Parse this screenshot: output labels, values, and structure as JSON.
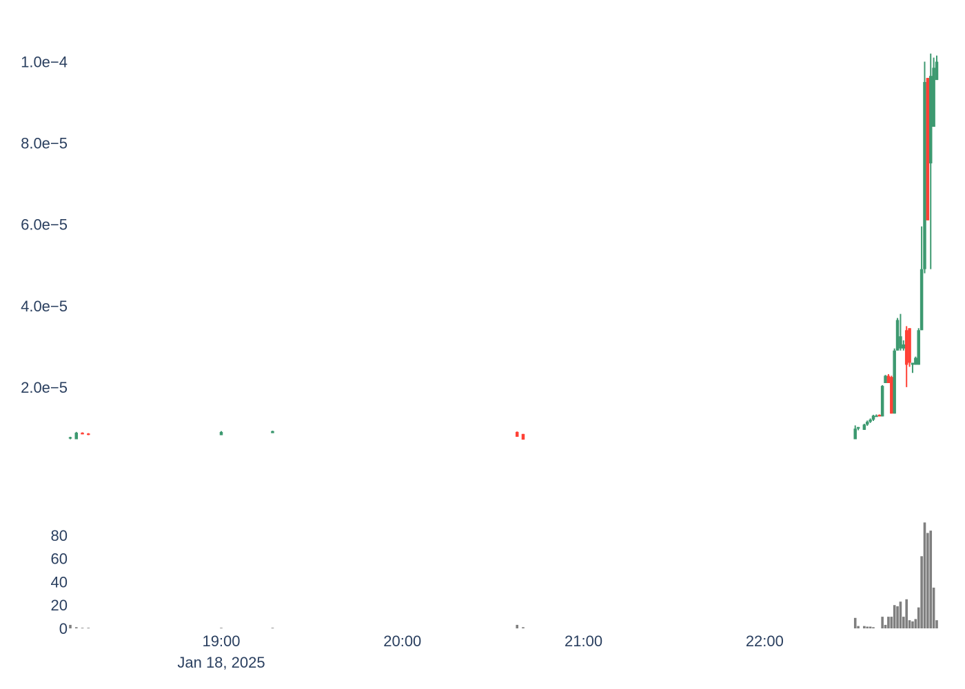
{
  "chart_data": {
    "type": "candlestick",
    "x_range": [
      "2025-01-18 18:10",
      "2025-01-18 22:57"
    ],
    "price": {
      "ylim": [
        0,
        0.000105
      ],
      "ticks": [
        2e-05,
        4e-05,
        6e-05,
        8e-05,
        0.0001
      ],
      "tick_labels": [
        "2.0e−5",
        "4.0e−5",
        "6.0e−5",
        "8.0e−5",
        "1.0e−4"
      ],
      "up_color": "#3d9970",
      "down_color": "#ff4136",
      "candles": [
        {
          "t": "18:10",
          "o": 7.5e-06,
          "h": 7.8e-06,
          "l": 7.2e-06,
          "c": 7.7e-06
        },
        {
          "t": "18:12",
          "o": 7.2e-06,
          "h": 9e-06,
          "l": 7.2e-06,
          "c": 8.8e-06
        },
        {
          "t": "18:14",
          "o": 8.8e-06,
          "h": 8.9e-06,
          "l": 8.4e-06,
          "c": 8.4e-06
        },
        {
          "t": "18:16",
          "o": 8.6e-06,
          "h": 8.7e-06,
          "l": 8.2e-06,
          "c": 8.4e-06
        },
        {
          "t": "19:00",
          "o": 8.2e-06,
          "h": 9.2e-06,
          "l": 8.2e-06,
          "c": 9e-06
        },
        {
          "t": "19:17",
          "o": 8.7e-06,
          "h": 9.3e-06,
          "l": 8.7e-06,
          "c": 9.2e-06
        },
        {
          "t": "20:38",
          "o": 9e-06,
          "h": 9.1e-06,
          "l": 7.8e-06,
          "c": 7.8e-06
        },
        {
          "t": "20:40",
          "o": 8.5e-06,
          "h": 8.5e-06,
          "l": 7.1e-06,
          "c": 7.1e-06
        },
        {
          "t": "22:30",
          "o": 7.2e-06,
          "h": 1.06e-05,
          "l": 7.2e-06,
          "c": 9.8e-06
        },
        {
          "t": "22:31",
          "o": 9.8e-06,
          "h": 1.02e-05,
          "l": 9.4e-06,
          "c": 1.02e-05
        },
        {
          "t": "22:33",
          "o": 9.5e-06,
          "h": 1.1e-05,
          "l": 9.5e-06,
          "c": 1.08e-05
        },
        {
          "t": "22:34",
          "o": 1.08e-05,
          "h": 1.18e-05,
          "l": 1.05e-05,
          "c": 1.15e-05
        },
        {
          "t": "22:35",
          "o": 1.15e-05,
          "h": 1.23e-05,
          "l": 1.12e-05,
          "c": 1.2e-05
        },
        {
          "t": "22:36",
          "o": 1.2e-05,
          "h": 1.32e-05,
          "l": 1.17e-05,
          "c": 1.3e-05
        },
        {
          "t": "22:37",
          "o": 1.3e-05,
          "h": 1.33e-05,
          "l": 1.28e-05,
          "c": 1.3e-05
        },
        {
          "t": "22:38",
          "o": 1.32e-05,
          "h": 1.33e-05,
          "l": 1.28e-05,
          "c": 1.28e-05
        },
        {
          "t": "22:39",
          "o": 1.28e-05,
          "h": 2.05e-05,
          "l": 1.28e-05,
          "c": 2.03e-05
        },
        {
          "t": "22:40",
          "o": 2.1e-05,
          "h": 2.3e-05,
          "l": 2.1e-05,
          "c": 2.28e-05
        },
        {
          "t": "22:41",
          "o": 2.28e-05,
          "h": 2.32e-05,
          "l": 2.1e-05,
          "c": 2.1e-05
        },
        {
          "t": "22:42",
          "o": 2.25e-05,
          "h": 2.28e-05,
          "l": 1.35e-05,
          "c": 1.35e-05
        },
        {
          "t": "22:43",
          "o": 1.35e-05,
          "h": 2.95e-05,
          "l": 1.35e-05,
          "c": 2.9e-05
        },
        {
          "t": "22:44",
          "o": 2.9e-05,
          "h": 3.7e-05,
          "l": 2.9e-05,
          "c": 3.65e-05
        },
        {
          "t": "22:45",
          "o": 2.95e-05,
          "h": 3.8e-05,
          "l": 2.9e-05,
          "c": 3.25e-05
        },
        {
          "t": "22:46",
          "o": 2.95e-05,
          "h": 3.15e-05,
          "l": 2.9e-05,
          "c": 3.05e-05
        },
        {
          "t": "22:47",
          "o": 3.4e-05,
          "h": 3.5e-05,
          "l": 2e-05,
          "c": 2.55e-05
        },
        {
          "t": "22:48",
          "o": 3.45e-05,
          "h": 3.45e-05,
          "l": 2.5e-05,
          "c": 2.6e-05
        },
        {
          "t": "22:49",
          "o": 2.55e-05,
          "h": 2.6e-05,
          "l": 2.35e-05,
          "c": 2.6e-05
        },
        {
          "t": "22:50",
          "o": 2.55e-05,
          "h": 2.75e-05,
          "l": 2.55e-05,
          "c": 2.72e-05
        },
        {
          "t": "22:51",
          "o": 2.55e-05,
          "h": 3.45e-05,
          "l": 2.55e-05,
          "c": 3.4e-05
        },
        {
          "t": "22:52",
          "o": 3.4e-05,
          "h": 5.95e-05,
          "l": 3.4e-05,
          "c": 4.9e-05
        },
        {
          "t": "22:53",
          "o": 4.9e-05,
          "h": 0.0001,
          "l": 4.8e-05,
          "c": 9.5e-05
        },
        {
          "t": "22:54",
          "o": 9.6e-05,
          "h": 9.6e-05,
          "l": 6.1e-05,
          "c": 6.1e-05
        },
        {
          "t": "22:55",
          "o": 7.5e-05,
          "h": 0.000102,
          "l": 4.9e-05,
          "c": 9.65e-05
        },
        {
          "t": "22:56",
          "o": 8.4e-05,
          "h": 0.000101,
          "l": 8.4e-05,
          "c": 9.85e-05
        },
        {
          "t": "22:57",
          "o": 9.55e-05,
          "h": 0.0001015,
          "l": 9.55e-05,
          "c": 0.0001
        }
      ]
    },
    "volume": {
      "ylim": [
        0,
        90
      ],
      "ticks": [
        0,
        20,
        40,
        60,
        80
      ],
      "tick_labels": [
        "0",
        "20",
        "40",
        "60",
        "80"
      ],
      "color": "#7f7f7f",
      "bars": [
        {
          "t": "18:10",
          "v": 3
        },
        {
          "t": "18:12",
          "v": 1
        },
        {
          "t": "18:14",
          "v": 0.5
        },
        {
          "t": "18:16",
          "v": 0.5
        },
        {
          "t": "19:00",
          "v": 0.5
        },
        {
          "t": "19:17",
          "v": 0.5
        },
        {
          "t": "20:38",
          "v": 3
        },
        {
          "t": "20:40",
          "v": 1
        },
        {
          "t": "22:30",
          "v": 9
        },
        {
          "t": "22:31",
          "v": 2
        },
        {
          "t": "22:33",
          "v": 2
        },
        {
          "t": "22:34",
          "v": 1.5
        },
        {
          "t": "22:35",
          "v": 1.5
        },
        {
          "t": "22:36",
          "v": 1
        },
        {
          "t": "22:39",
          "v": 10
        },
        {
          "t": "22:40",
          "v": 3
        },
        {
          "t": "22:41",
          "v": 10
        },
        {
          "t": "22:42",
          "v": 10
        },
        {
          "t": "22:43",
          "v": 20
        },
        {
          "t": "22:44",
          "v": 19
        },
        {
          "t": "22:45",
          "v": 23
        },
        {
          "t": "22:46",
          "v": 10
        },
        {
          "t": "22:47",
          "v": 25
        },
        {
          "t": "22:48",
          "v": 7
        },
        {
          "t": "22:49",
          "v": 6
        },
        {
          "t": "22:50",
          "v": 8
        },
        {
          "t": "22:51",
          "v": 18
        },
        {
          "t": "22:52",
          "v": 62
        },
        {
          "t": "22:53",
          "v": 91
        },
        {
          "t": "22:54",
          "v": 82
        },
        {
          "t": "22:55",
          "v": 84
        },
        {
          "t": "22:56",
          "v": 35
        },
        {
          "t": "22:57",
          "v": 7
        }
      ]
    },
    "x_ticks": [
      {
        "t": "19:00",
        "label": "19:00",
        "sublabel": "Jan 18, 2025"
      },
      {
        "t": "20:00",
        "label": "20:00",
        "sublabel": ""
      },
      {
        "t": "21:00",
        "label": "21:00",
        "sublabel": ""
      },
      {
        "t": "22:00",
        "label": "22:00",
        "sublabel": ""
      }
    ]
  }
}
